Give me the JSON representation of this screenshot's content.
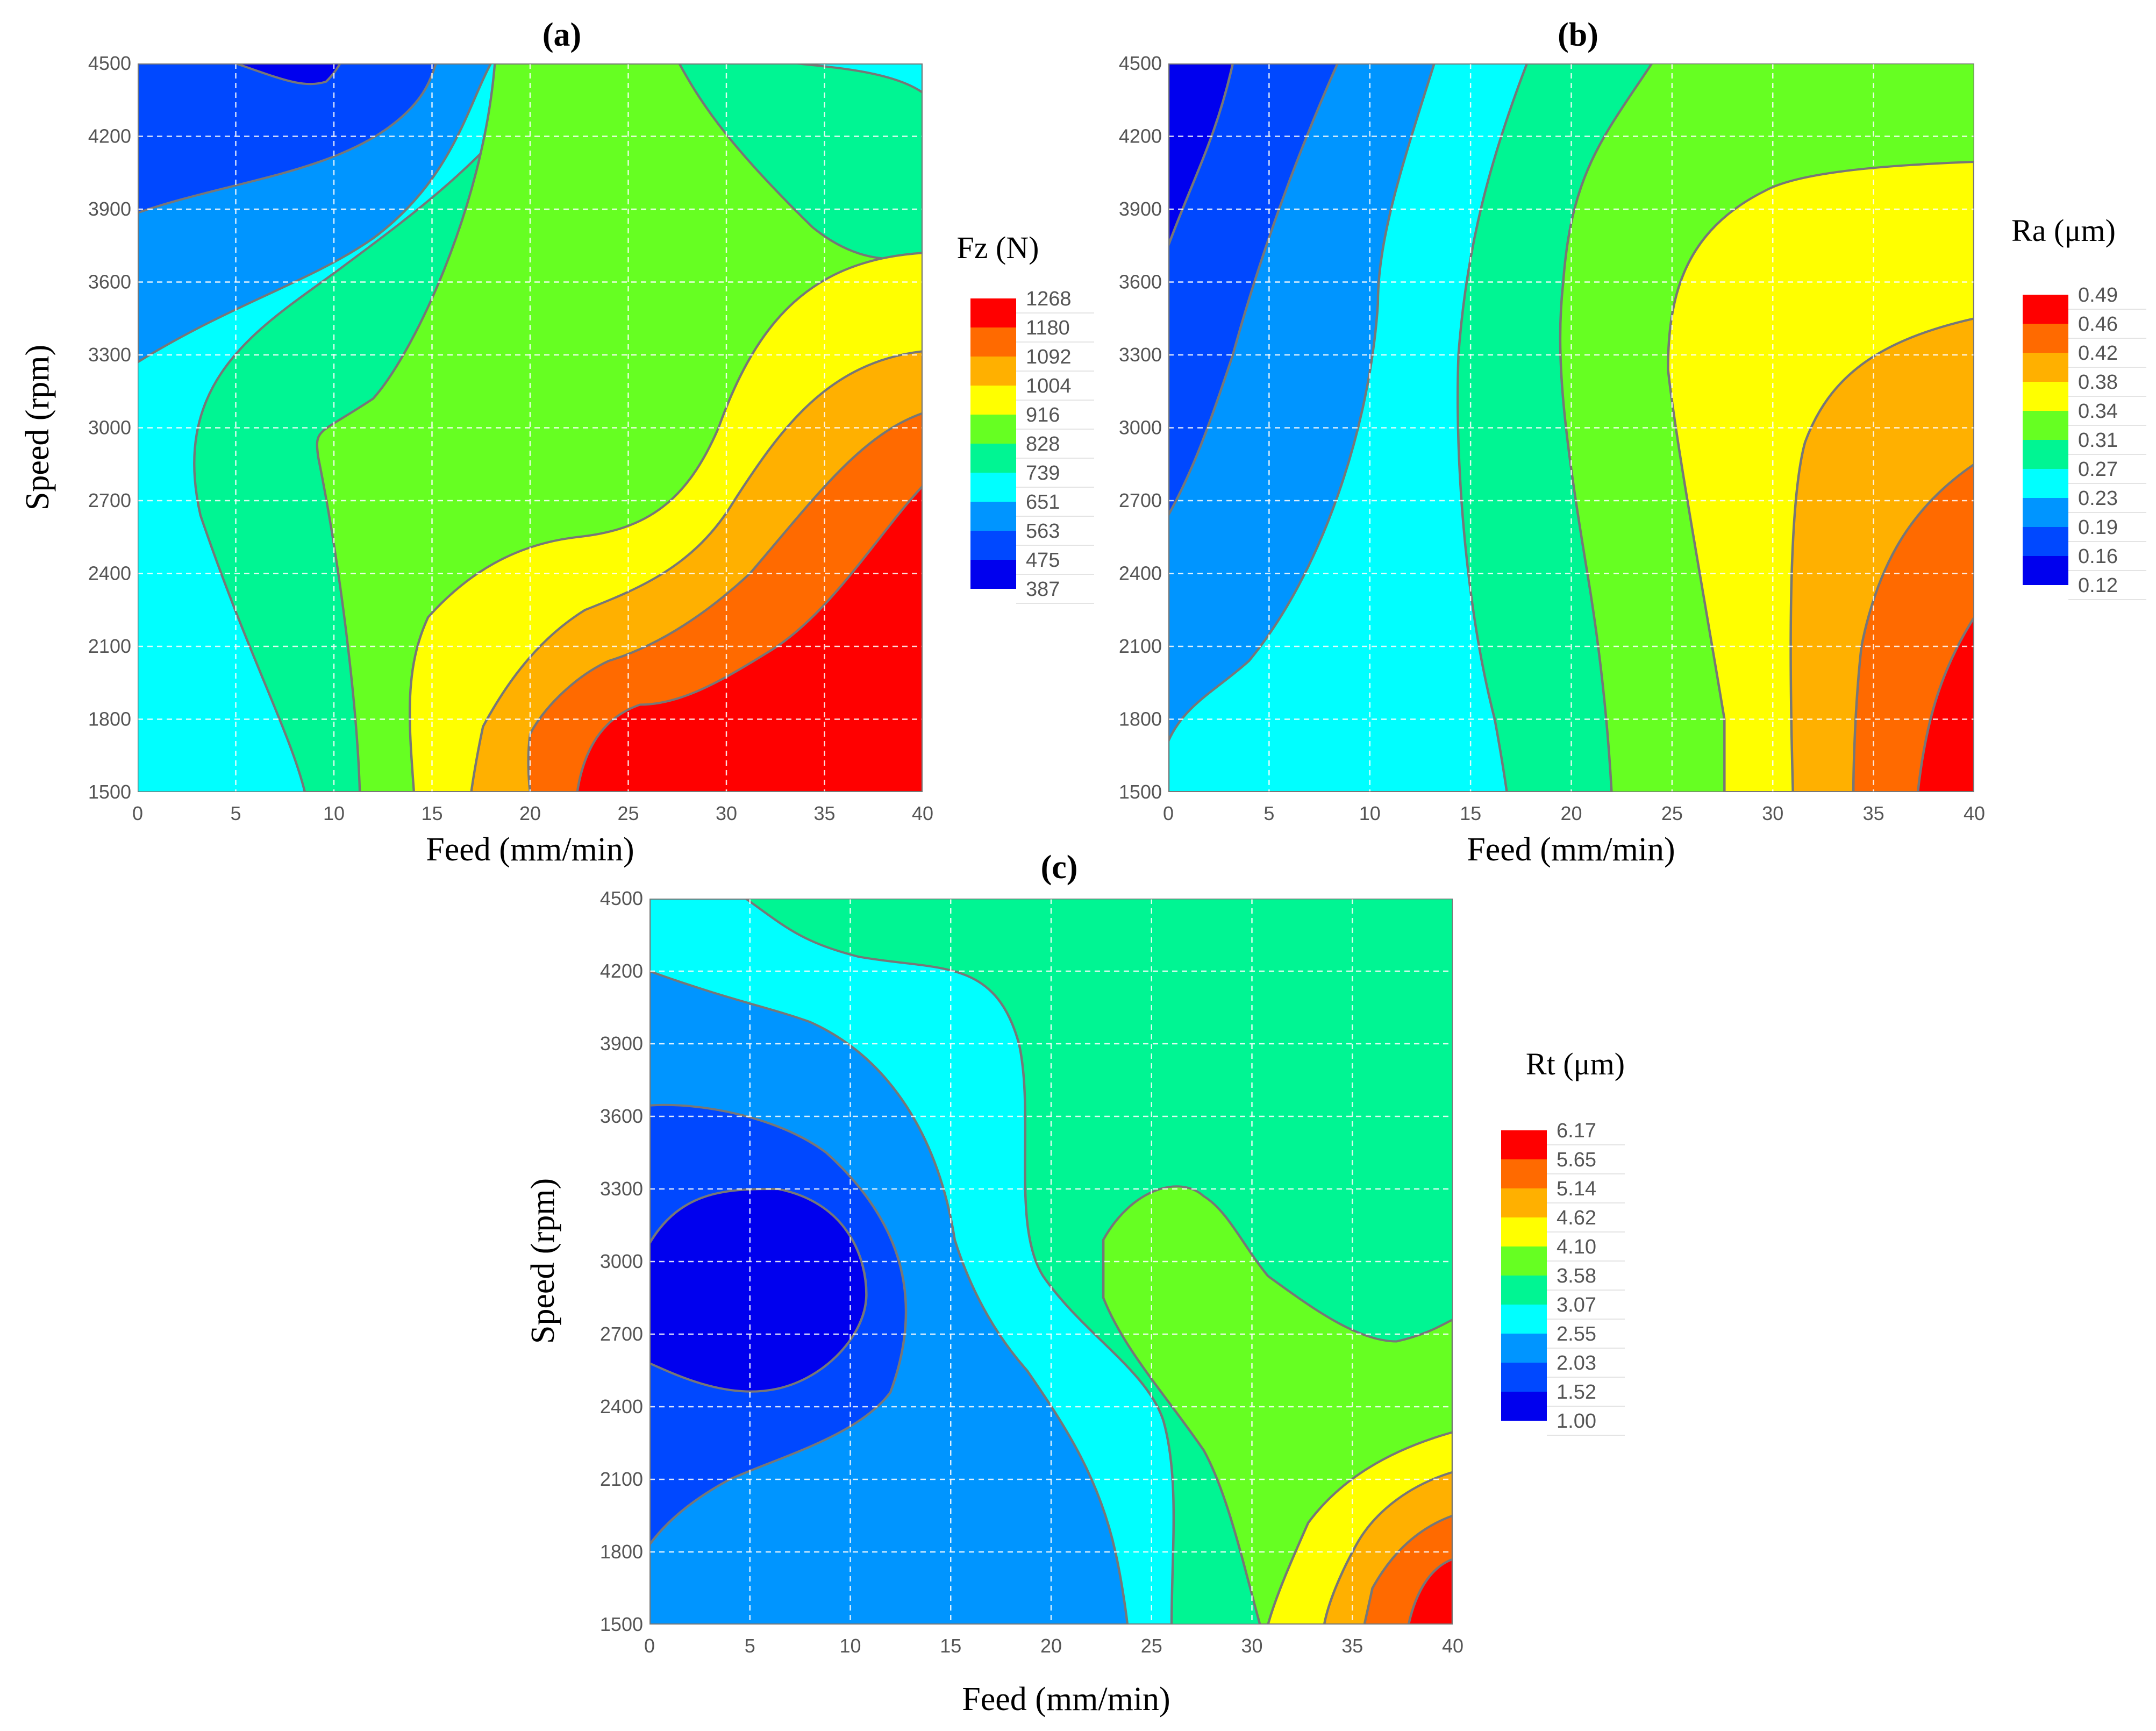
{
  "chart_data": [
    {
      "panel": "(a)",
      "type": "contour",
      "xlabel": "Feed (mm/min)",
      "ylabel": "Speed (rpm)",
      "xlim": [
        0,
        40
      ],
      "ylim": [
        1500,
        4500
      ],
      "xticks": [
        "0",
        "5",
        "10",
        "15",
        "20",
        "25",
        "30",
        "35",
        "40"
      ],
      "yticks": [
        "1500",
        "1800",
        "2100",
        "2400",
        "2700",
        "3000",
        "3300",
        "3600",
        "3900",
        "4200",
        "4500"
      ],
      "colorbar_title": "Fz (N)",
      "levels": [
        "1268",
        "1180",
        "1092",
        "1004",
        "916",
        "828",
        "739",
        "651",
        "563",
        "475",
        "387"
      ],
      "level_colors": [
        "#ff0000",
        "#ff6a00",
        "#ffb000",
        "#ffff00",
        "#66ff22",
        "#00f593",
        "#00ffff",
        "#0095ff",
        "#0048ff",
        "#0000ee"
      ],
      "grid": true
    },
    {
      "panel": "(b)",
      "type": "contour",
      "xlabel": "Feed (mm/min)",
      "ylabel": "",
      "xlim": [
        0,
        40
      ],
      "ylim": [
        1500,
        4500
      ],
      "xticks": [
        "0",
        "5",
        "10",
        "15",
        "20",
        "25",
        "30",
        "35",
        "40"
      ],
      "yticks": [
        "1500",
        "1800",
        "2100",
        "2400",
        "2700",
        "3000",
        "3300",
        "3600",
        "3900",
        "4200",
        "4500"
      ],
      "colorbar_title": "Ra (μm)",
      "levels": [
        "0.49",
        "0.46",
        "0.42",
        "0.38",
        "0.34",
        "0.31",
        "0.27",
        "0.23",
        "0.19",
        "0.16",
        "0.12"
      ],
      "level_colors": [
        "#ff0000",
        "#ff6a00",
        "#ffb000",
        "#ffff00",
        "#66ff22",
        "#00f593",
        "#00ffff",
        "#0095ff",
        "#0048ff",
        "#0000ee"
      ],
      "grid": true
    },
    {
      "panel": "(c)",
      "type": "contour",
      "xlabel": "Feed (mm/min)",
      "ylabel": "Speed (rpm)",
      "xlim": [
        0,
        40
      ],
      "ylim": [
        1500,
        4500
      ],
      "xticks": [
        "0",
        "5",
        "10",
        "15",
        "20",
        "25",
        "30",
        "35",
        "40"
      ],
      "yticks": [
        "1500",
        "1800",
        "2100",
        "2400",
        "2700",
        "3000",
        "3300",
        "3600",
        "3900",
        "4200",
        "4500"
      ],
      "colorbar_title": "Rt (μm)",
      "levels": [
        "6.17",
        "5.65",
        "5.14",
        "4.62",
        "4.10",
        "3.58",
        "3.07",
        "2.55",
        "2.03",
        "1.52",
        "1.00"
      ],
      "level_colors": [
        "#ff0000",
        "#ff6a00",
        "#ffb000",
        "#ffff00",
        "#66ff22",
        "#00f593",
        "#00ffff",
        "#0095ff",
        "#0048ff",
        "#0000ee"
      ],
      "grid": true
    }
  ]
}
